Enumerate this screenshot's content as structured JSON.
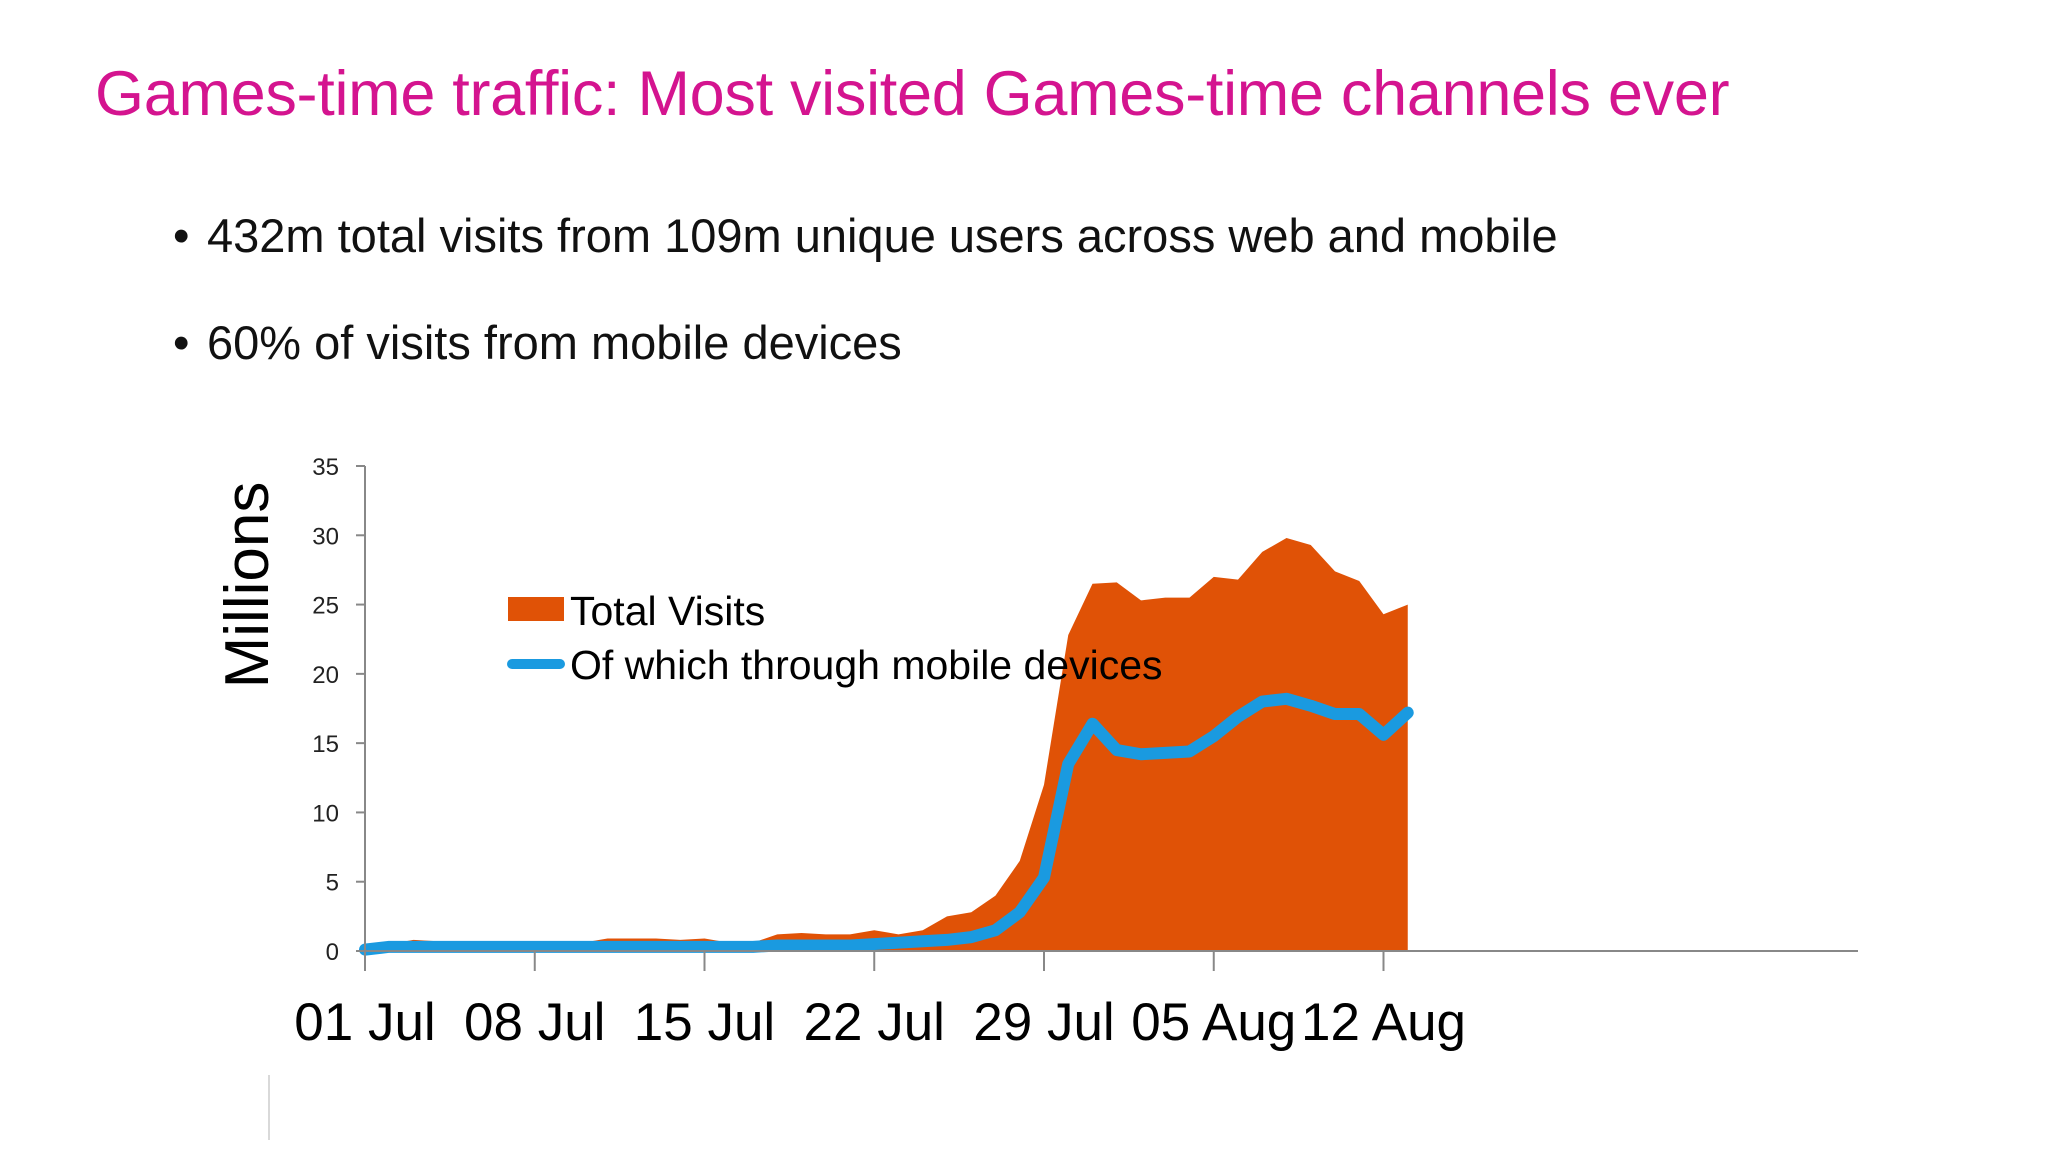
{
  "title": "Games-time traffic: Most visited Games-time channels ever",
  "bullets": [
    "432m total visits from 109m unique users across web and mobile",
    "60% of visits from mobile devices"
  ],
  "colors": {
    "title": "#d4148f",
    "total_visits": "#e05206",
    "mobile": "#1a9ae0"
  },
  "chart_data": {
    "type": "area",
    "title": "",
    "xlabel": "",
    "ylabel": "Millions",
    "ylim": [
      0,
      35
    ],
    "yticks": [
      0,
      5,
      10,
      15,
      20,
      25,
      30,
      35
    ],
    "x_tick_labels": [
      "01 Jul",
      "08 Jul",
      "15 Jul",
      "22 Jul",
      "29 Jul",
      "05 Aug",
      "12 Aug"
    ],
    "x_tick_day_index": [
      0,
      7,
      14,
      21,
      28,
      35,
      42
    ],
    "grid": false,
    "legend": "inside-top-left",
    "series": [
      {
        "name": "Total Visits",
        "type": "area",
        "values": [
          0.1,
          0.5,
          0.8,
          0.7,
          0.6,
          0.6,
          0.7,
          0.5,
          0.5,
          0.6,
          0.9,
          0.9,
          0.9,
          0.8,
          0.9,
          0.6,
          0.6,
          1.2,
          1.3,
          1.2,
          1.2,
          1.5,
          1.2,
          1.5,
          2.5,
          2.8,
          4.0,
          6.5,
          12.0,
          22.8,
          26.5,
          26.6,
          25.3,
          25.5,
          25.5,
          27.0,
          26.8,
          28.8,
          29.8,
          29.3,
          27.4,
          26.7,
          24.3,
          25.0
        ]
      },
      {
        "name": "Of which through mobile devices",
        "type": "line",
        "values": [
          0.1,
          0.3,
          0.3,
          0.3,
          0.3,
          0.3,
          0.3,
          0.3,
          0.3,
          0.3,
          0.3,
          0.3,
          0.3,
          0.3,
          0.3,
          0.3,
          0.3,
          0.4,
          0.4,
          0.4,
          0.4,
          0.5,
          0.6,
          0.7,
          0.8,
          1.0,
          1.5,
          2.8,
          5.3,
          13.5,
          16.4,
          14.5,
          14.2,
          14.3,
          14.4,
          15.5,
          16.9,
          18.0,
          18.2,
          17.7,
          17.1,
          17.1,
          15.6,
          17.2
        ]
      }
    ]
  }
}
